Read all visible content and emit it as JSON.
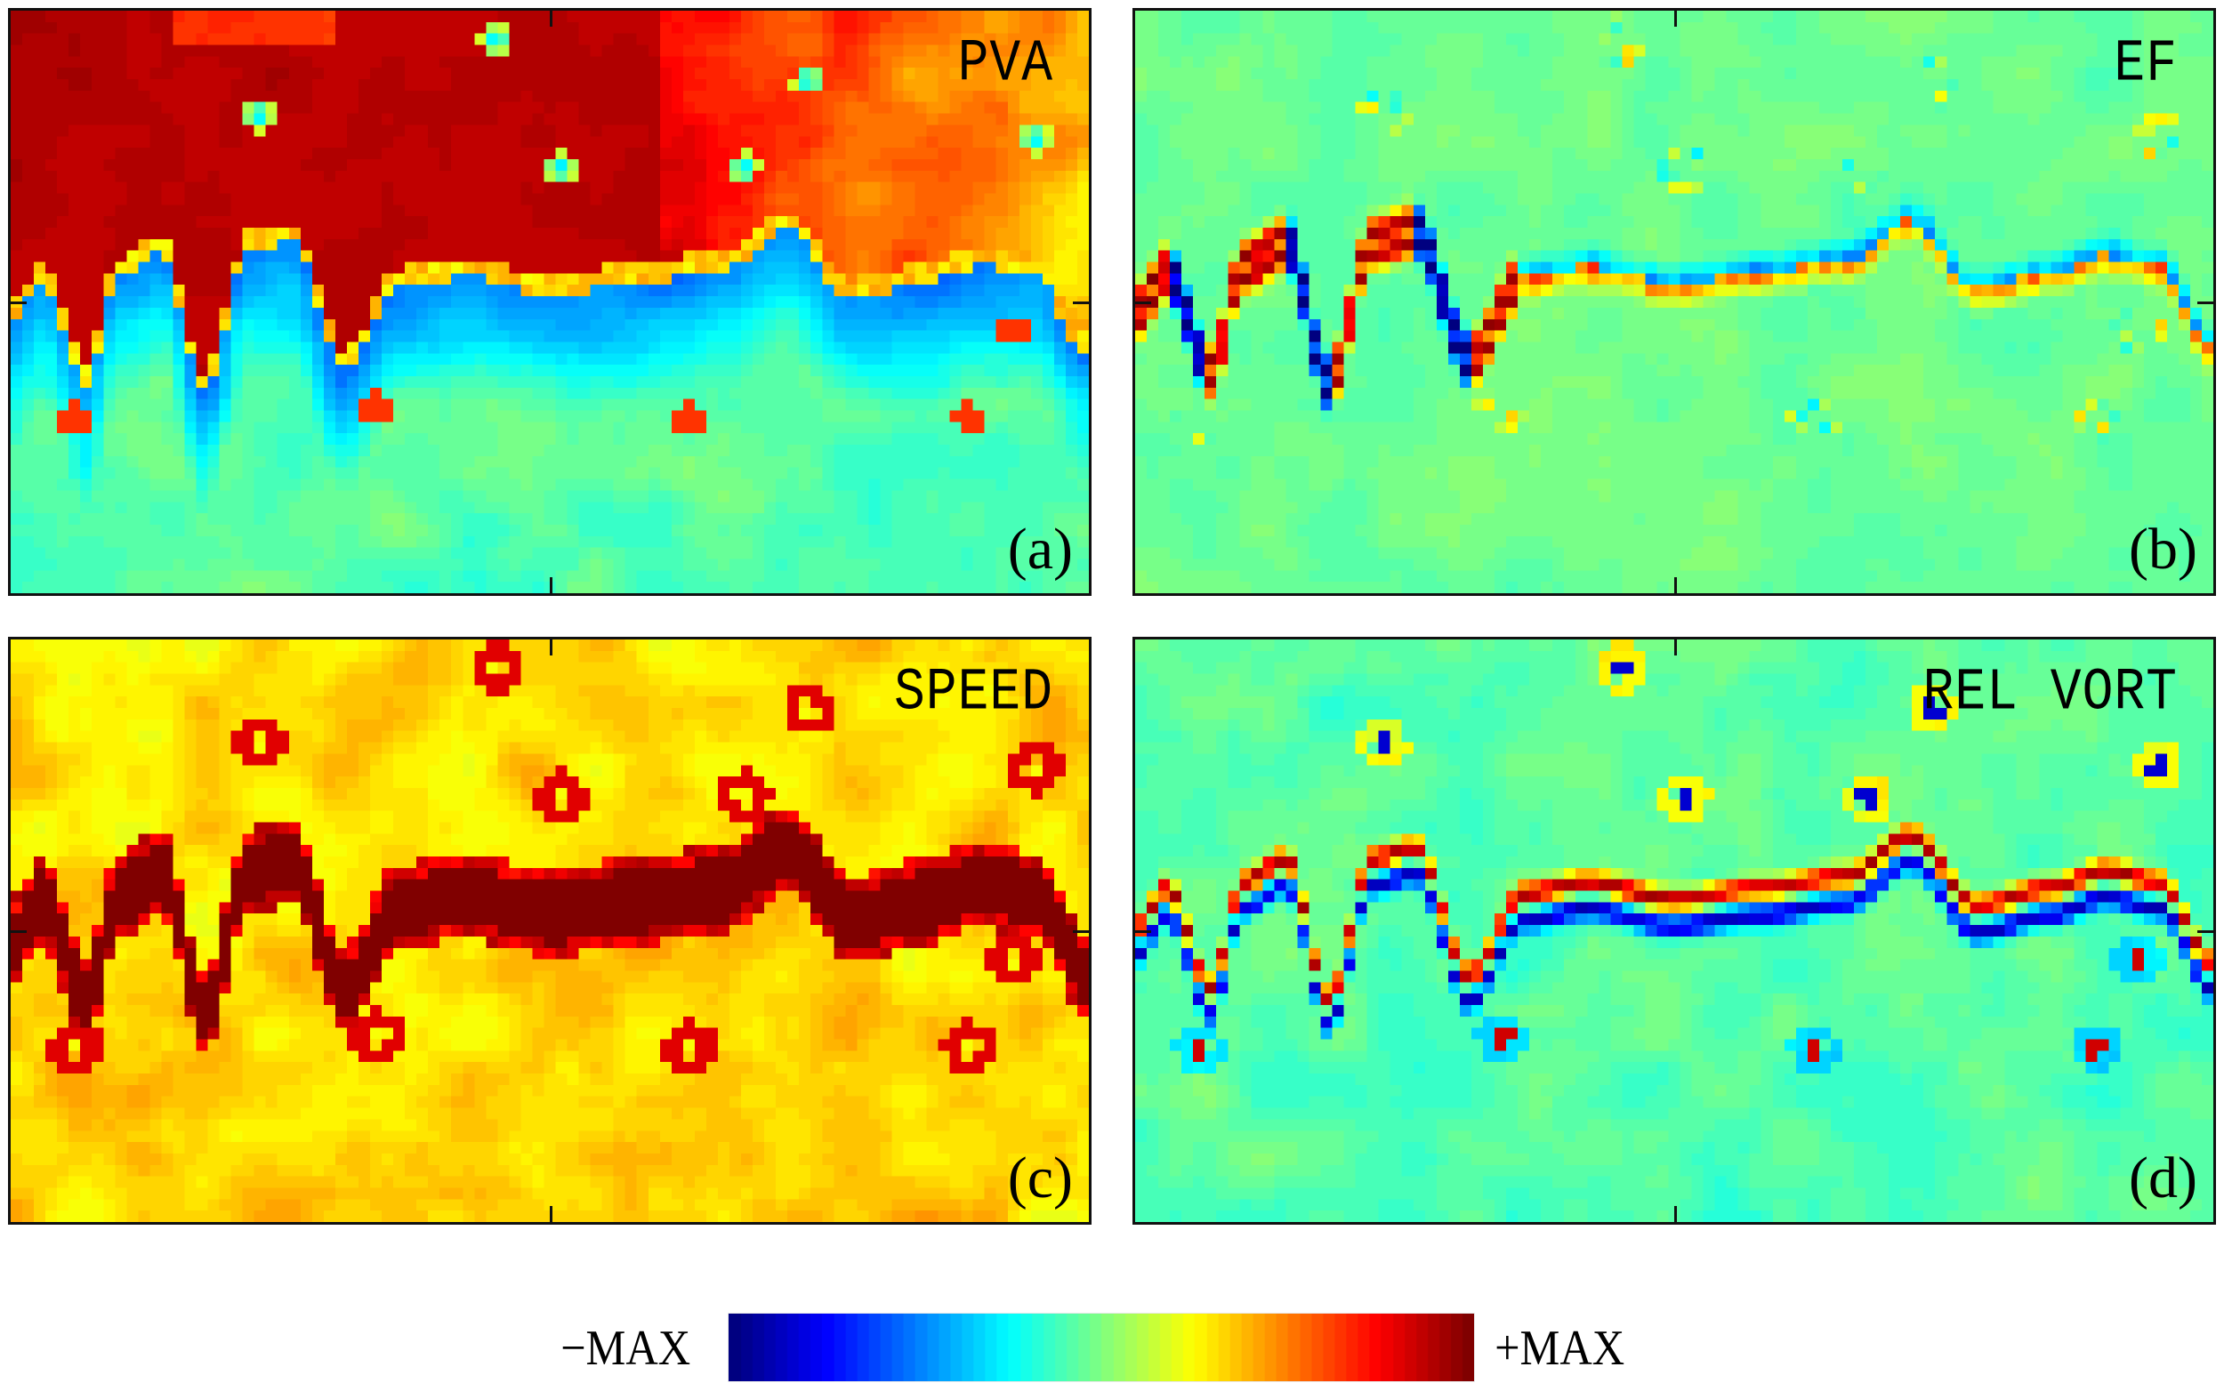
{
  "chart_data": {
    "type": "heatmap",
    "colormap": "jet",
    "grid": {
      "cols": 93,
      "rows": 51
    },
    "colorbar": {
      "min_label": "−MAX",
      "max_label": "+MAX",
      "stops": [
        "#00008f",
        "#0000ff",
        "#00ffff",
        "#ffff00",
        "#ff0000",
        "#800000"
      ]
    },
    "meander": {
      "description": "jet axis y (0=top,1=bottom) as function of x (0..1) with deep lobes on left",
      "points": [
        [
          0.0,
          0.52
        ],
        [
          0.03,
          0.45
        ],
        [
          0.07,
          0.62
        ],
        [
          0.1,
          0.44
        ],
        [
          0.14,
          0.4
        ],
        [
          0.18,
          0.64
        ],
        [
          0.22,
          0.4
        ],
        [
          0.26,
          0.38
        ],
        [
          0.31,
          0.6
        ],
        [
          0.36,
          0.46
        ],
        [
          0.42,
          0.44
        ],
        [
          0.5,
          0.47
        ],
        [
          0.58,
          0.45
        ],
        [
          0.66,
          0.43
        ],
        [
          0.72,
          0.36
        ],
        [
          0.78,
          0.48
        ],
        [
          0.85,
          0.45
        ],
        [
          0.9,
          0.42
        ],
        [
          0.95,
          0.44
        ],
        [
          1.0,
          0.58
        ]
      ]
    },
    "eddies": [
      {
        "x": 0.23,
        "y": 0.18,
        "sign": 1
      },
      {
        "x": 0.51,
        "y": 0.27,
        "sign": 1
      },
      {
        "x": 0.68,
        "y": 0.27,
        "sign": 1
      },
      {
        "x": 0.95,
        "y": 0.22,
        "sign": 1
      },
      {
        "x": 0.34,
        "y": 0.68,
        "sign": -1
      },
      {
        "x": 0.63,
        "y": 0.7,
        "sign": -1
      },
      {
        "x": 0.93,
        "y": 0.55,
        "sign": -1
      },
      {
        "x": 0.06,
        "y": 0.7,
        "sign": -1
      },
      {
        "x": 0.45,
        "y": 0.05,
        "sign": 1
      },
      {
        "x": 0.74,
        "y": 0.12,
        "sign": 1
      },
      {
        "x": 0.89,
        "y": 0.7,
        "sign": -1
      }
    ],
    "panels": [
      {
        "id": "a",
        "title": "PVA",
        "letter": "(a)",
        "field": "pva"
      },
      {
        "id": "b",
        "title": "EF",
        "letter": "(b)",
        "field": "ef"
      },
      {
        "id": "c",
        "title": "SPEED",
        "letter": "(c)",
        "field": "speed"
      },
      {
        "id": "d",
        "title": "REL VORT",
        "letter": "(d)",
        "field": "vort"
      }
    ],
    "xlabel": "",
    "ylabel": "",
    "legend": "colorbar bottom center"
  },
  "panels": {
    "a": {
      "title": "PVA",
      "letter": "(a)"
    },
    "b": {
      "title": "EF",
      "letter": "(b)"
    },
    "c": {
      "title": "SPEED",
      "letter": "(c)"
    },
    "d": {
      "title": "REL VORT",
      "letter": "(d)"
    }
  },
  "colorbar": {
    "min_label": "−MAX",
    "max_label": "+MAX"
  }
}
